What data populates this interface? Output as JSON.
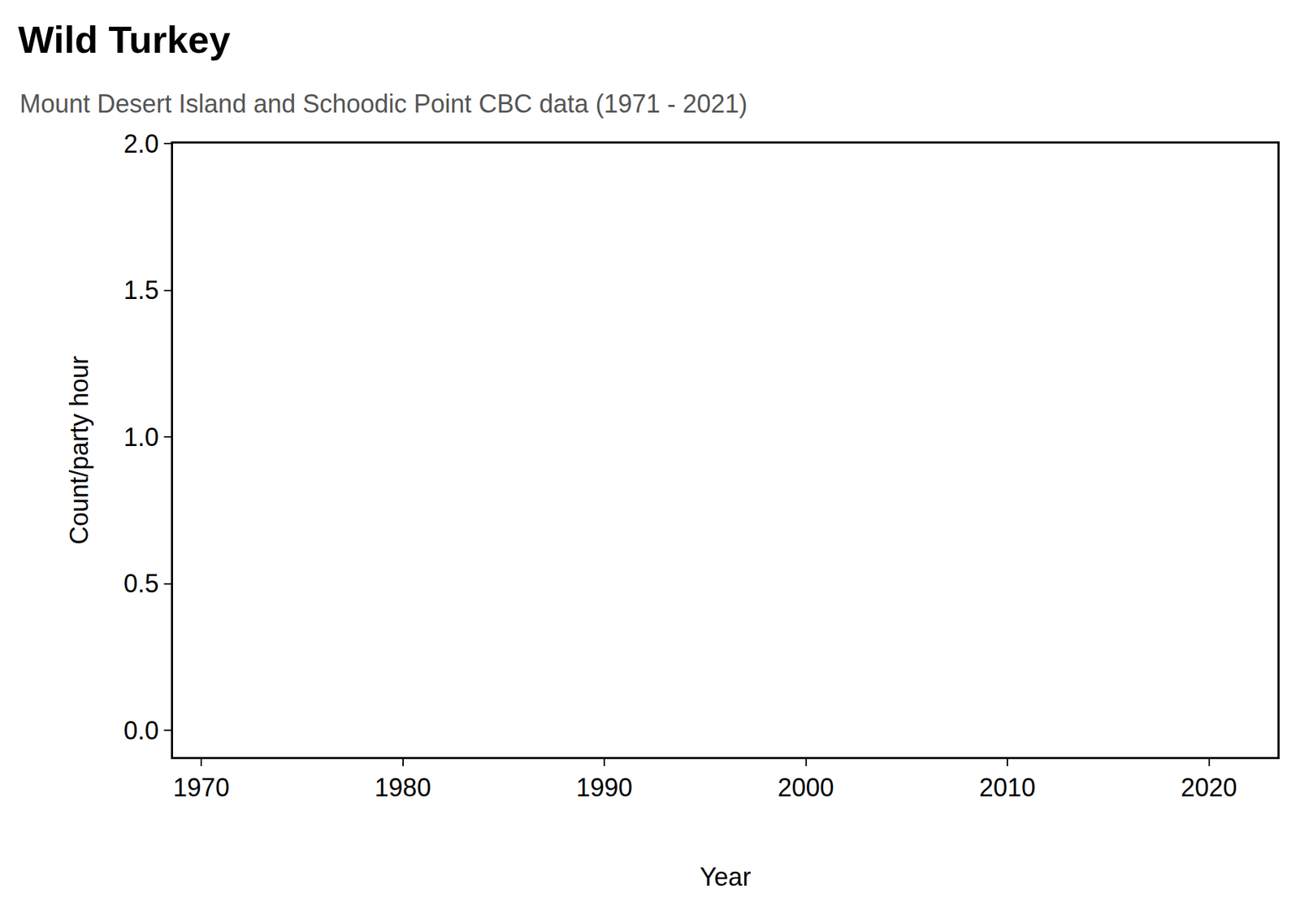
{
  "chart_data": {
    "type": "line",
    "title": "Wild Turkey",
    "subtitle": "Mount Desert Island and Schoodic Point CBC data (1971 - 2021)",
    "x_label": "Year",
    "y_label": "Count/party hour",
    "x": [],
    "values": [],
    "xlim": [
      1968.6,
      2023.4
    ],
    "xticks": [
      1970,
      1980,
      1990,
      2000,
      2010,
      2020
    ],
    "ylim": [
      -0.09,
      2.0
    ],
    "yticks": [
      {
        "value": 0,
        "label": "0.0"
      },
      {
        "value": 0.5,
        "label": "0.5"
      },
      {
        "value": 1,
        "label": "1.0"
      },
      {
        "value": 1.5,
        "label": "1.5"
      },
      {
        "value": 2,
        "label": "2.0"
      }
    ],
    "grid": false
  }
}
